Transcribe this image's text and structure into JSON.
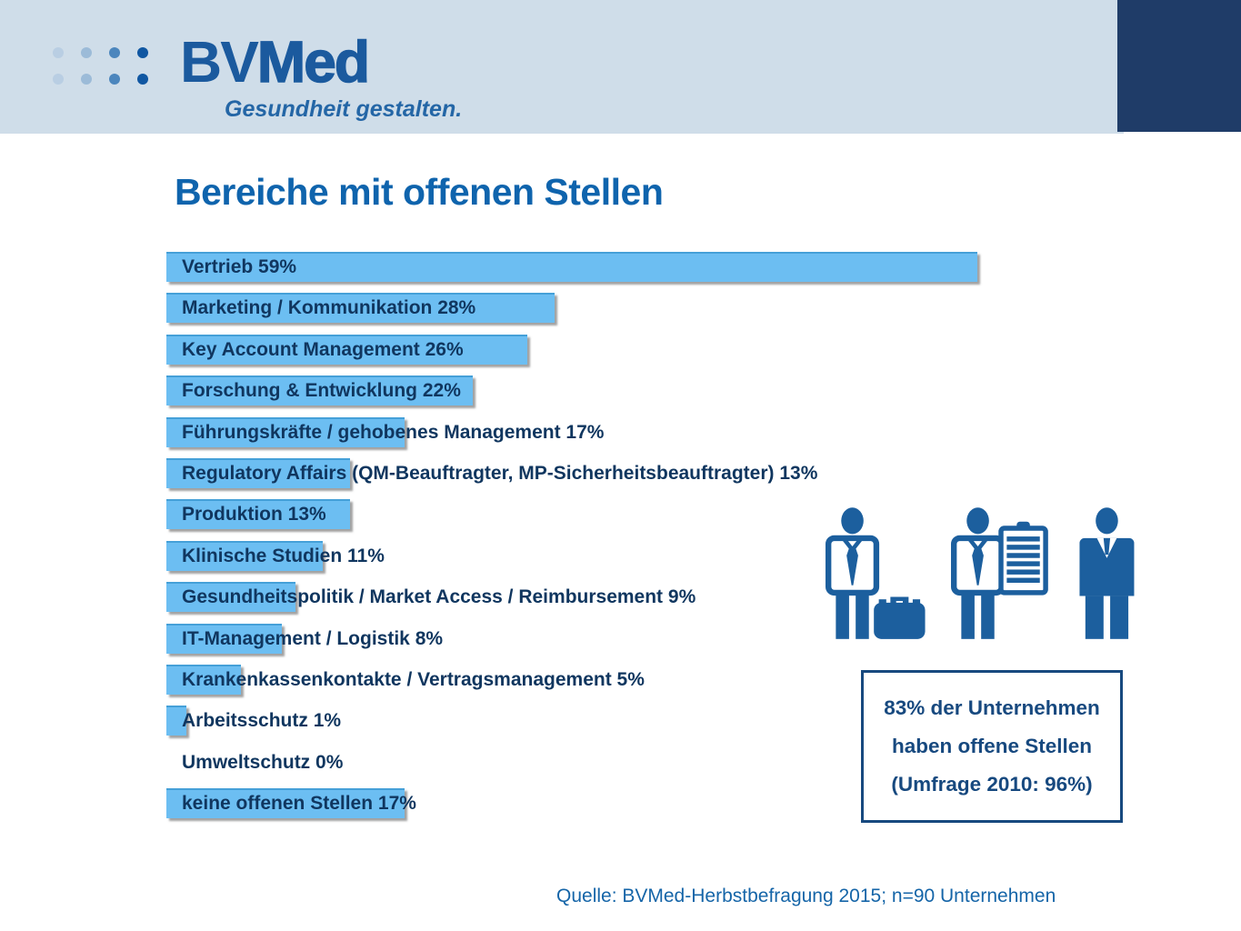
{
  "header": {
    "logo_bv": "BV",
    "logo_med": "Med",
    "tagline": "Gesundheit gestalten."
  },
  "chart_data": {
    "type": "bar",
    "orientation": "horizontal",
    "title": "Bereiche mit offenen Stellen",
    "unit": "%",
    "categories": [
      "Vertrieb",
      "Marketing / Kommunikation",
      "Key Account Management",
      "Forschung & Entwicklung",
      "Führungskräfte / gehobenes Management",
      "Regulatory Affairs (QM-Beauftragter, MP-Sicherheitsbeauftragter)",
      "Produktion",
      "Klinische Studien",
      "Gesundheitspolitik / Market Access / Reimbursement",
      "IT-Management / Logistik",
      "Krankenkassenkontakte / Vertragsmanagement",
      "Arbeitsschutz",
      "Umweltschutz",
      "keine offenen Stellen"
    ],
    "values": [
      59,
      28,
      26,
      22,
      17,
      13,
      13,
      11,
      9,
      8,
      5,
      1,
      0,
      17
    ],
    "value_labels_inside_bars": true,
    "xlim": [
      0,
      60
    ],
    "grid": false,
    "legend": false
  },
  "callout": {
    "lines": [
      "83% der Unternehmen",
      "haben offene Stellen",
      "(Umfrage 2010: 96%)"
    ]
  },
  "icons": [
    "person-with-briefcase",
    "person-with-clipboard",
    "manager-in-suit"
  ],
  "source": "Quelle: BVMed-Herbstbefragung 2015; n=90 Unternehmen",
  "colors": {
    "band": "#cfdde9",
    "corner_block": "#1f3c68",
    "logo_blue": "#1b5a9e",
    "tagline_blue": "#2466a6",
    "title_blue": "#0f64ad",
    "bar_fill": "#6cbef2",
    "bar_edge": "#45a0d8",
    "bar_text": "#10365f",
    "icon_blue": "#1c5f9e",
    "callout_blue": "#17497f",
    "source_blue": "#1565a8",
    "dot_colors": [
      "#b9cee3",
      "#9cbbd8",
      "#4c86bd",
      "#1057a2"
    ]
  }
}
